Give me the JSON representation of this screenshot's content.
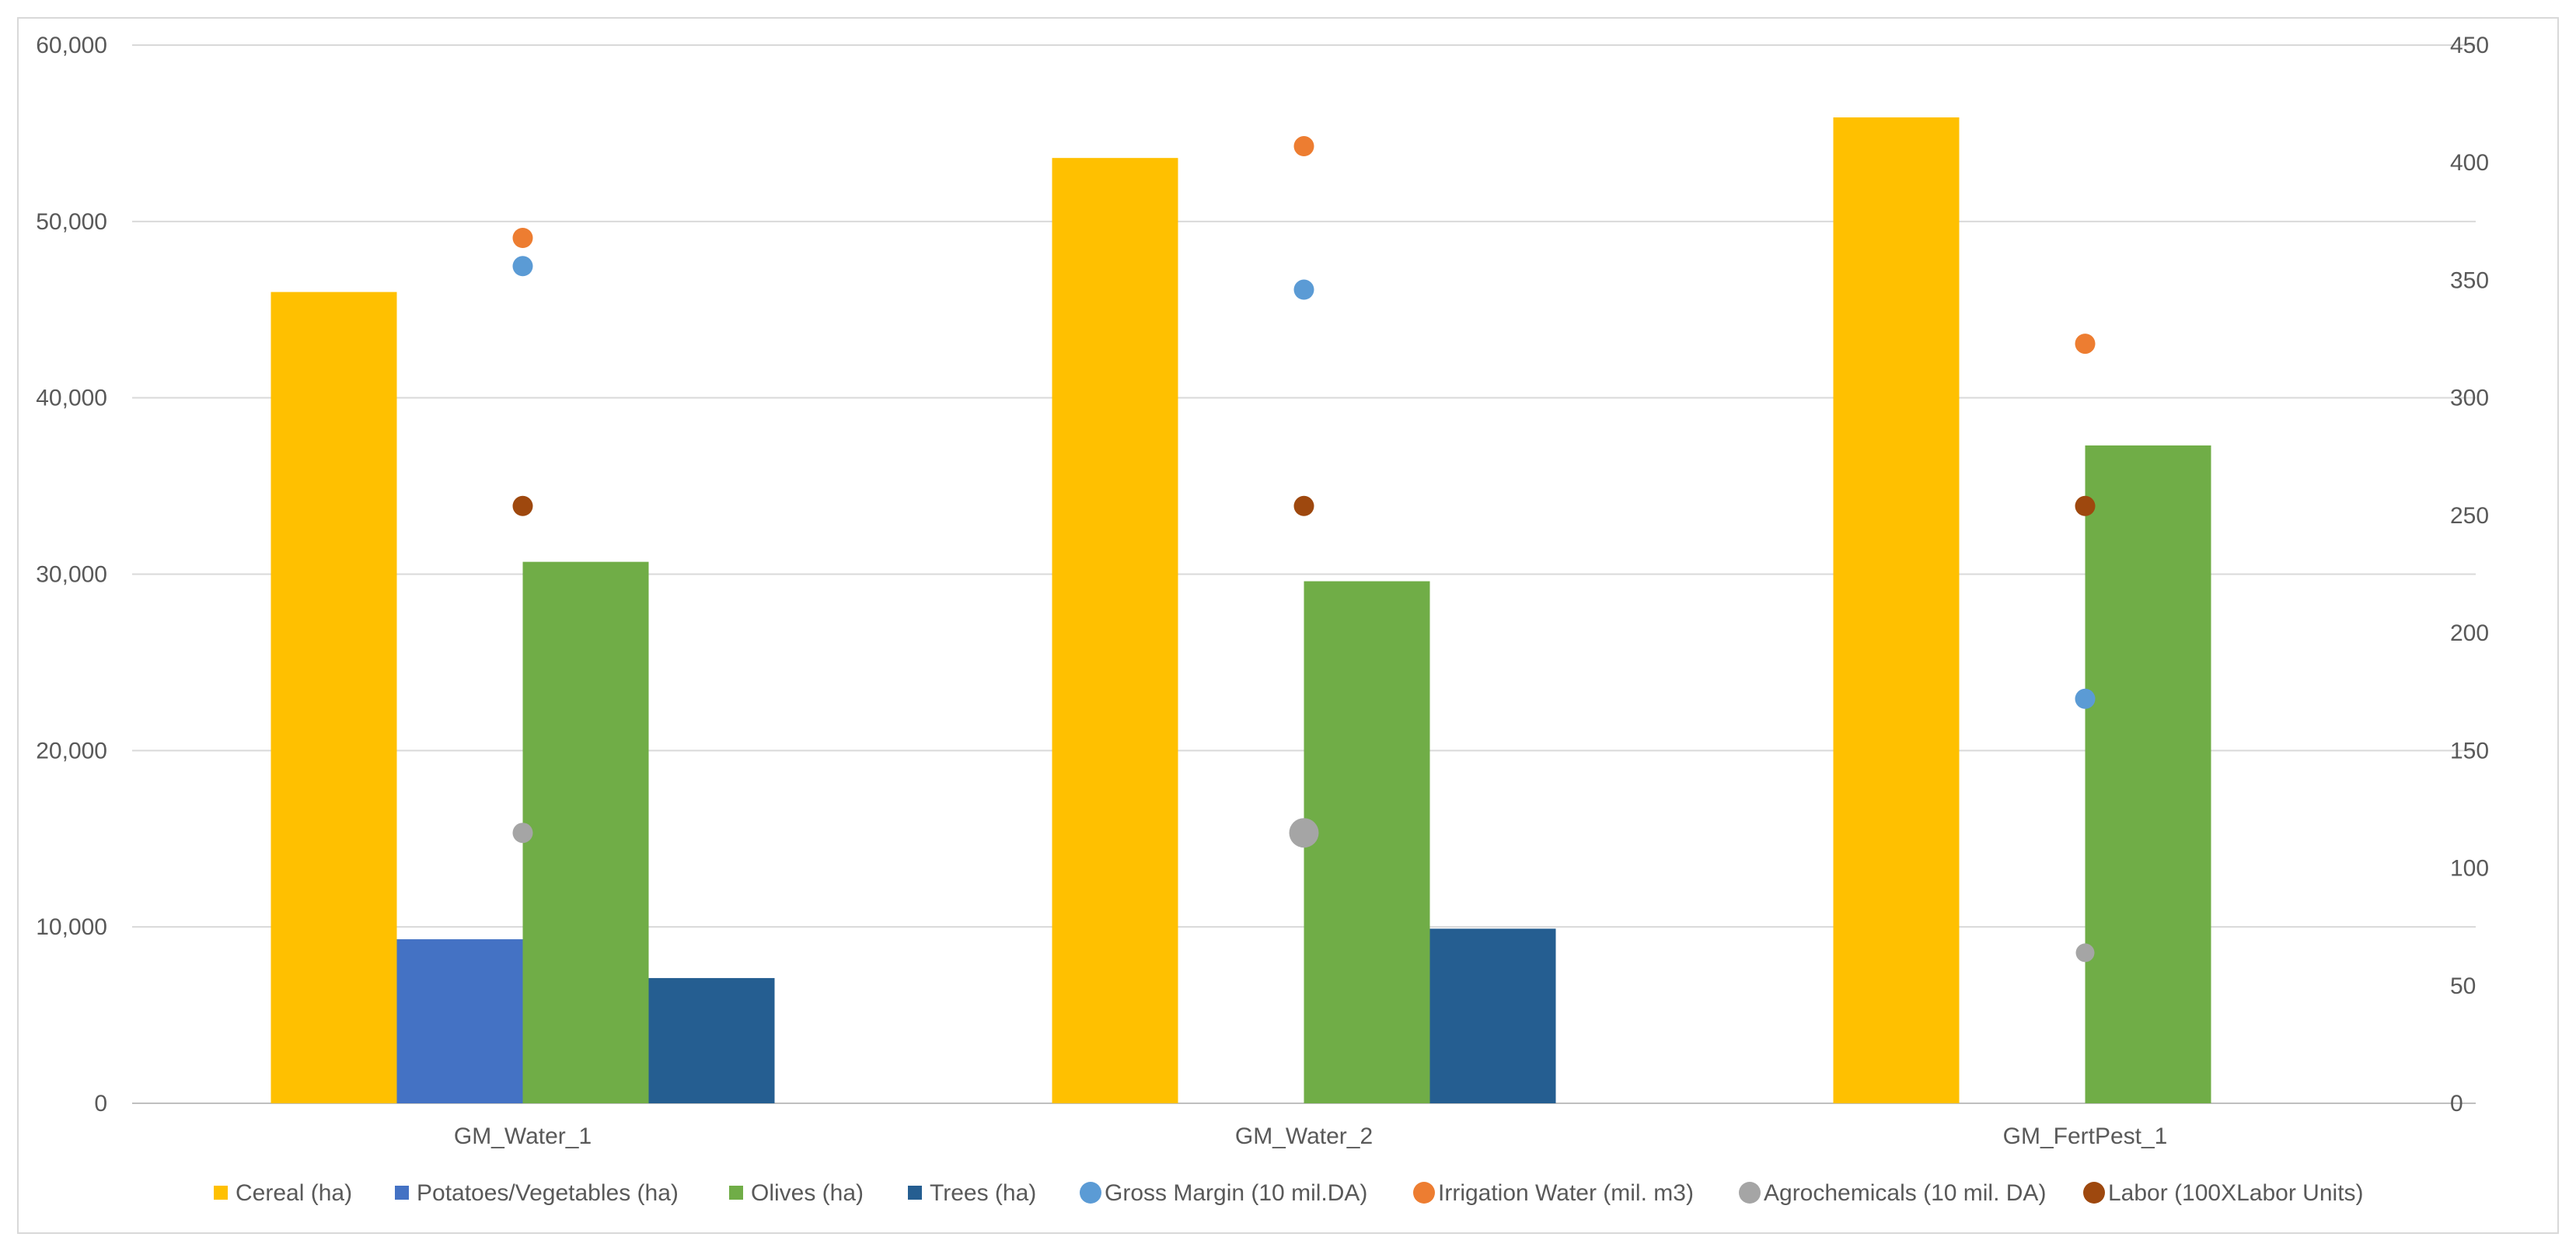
{
  "chart_data": {
    "type": "bar",
    "title": "",
    "xlabel": "",
    "ylabel": "",
    "categories": [
      "GM_Water_1",
      "GM_Water_2",
      "GM_FertPest_1"
    ],
    "ylim": [
      0,
      60000
    ],
    "yticks": [
      0,
      10000,
      20000,
      30000,
      40000,
      50000,
      60000
    ],
    "ytick_labels": [
      "0",
      "10,000",
      "20,000",
      "30,000",
      "40,000",
      "50,000",
      "60,000"
    ],
    "y2lim": [
      0,
      450
    ],
    "y2ticks": [
      0,
      50,
      100,
      150,
      200,
      250,
      300,
      350,
      400,
      450
    ],
    "y2tick_labels": [
      "0",
      "50",
      "100",
      "150",
      "200",
      "250",
      "300",
      "350",
      "400",
      "450"
    ],
    "grid": true,
    "legend_position": "bottom",
    "bar_series": [
      {
        "name": "Cereal (ha)",
        "color": "#FFC000",
        "values": [
          46000,
          53600,
          55900
        ]
      },
      {
        "name": "Potatoes/Vegetables (ha)",
        "color": "#4472C4",
        "values": [
          9300,
          0,
          0
        ]
      },
      {
        "name": "Olives (ha)",
        "color": "#70AD47",
        "values": [
          30700,
          29600,
          37300
        ]
      },
      {
        "name": "Trees (ha)",
        "color": "#255E91",
        "values": [
          7100,
          9900,
          0
        ]
      }
    ],
    "scatter_series": [
      {
        "name": "Gross Margin (10 mil.DA)",
        "color": "#5B9BD5",
        "axis": "secondary",
        "values": [
          356,
          346,
          172
        ]
      },
      {
        "name": "Irrigation Water (mil. m3)",
        "color": "#ED7D31",
        "axis": "secondary",
        "values": [
          368,
          407,
          323
        ]
      },
      {
        "name": "Agrochemicals (10 mil. DA)",
        "color": "#A5A5A5",
        "axis": "secondary",
        "values": [
          115,
          115,
          64
        ]
      },
      {
        "name": "Labor (100XLabor Units)",
        "color": "#9E480E",
        "axis": "secondary",
        "values": [
          254,
          254,
          254
        ]
      }
    ]
  }
}
